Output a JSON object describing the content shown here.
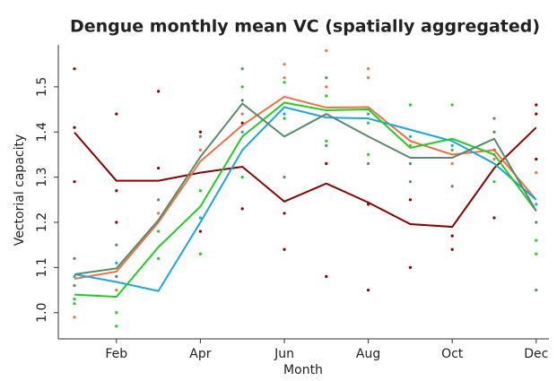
{
  "chart_data": {
    "type": "line",
    "title": "Dengue monthly mean VC (spatially aggregated)",
    "x_label": "Month",
    "y_label": "Vectorial capacity",
    "categories": [
      null,
      "Feb",
      null,
      "Apr",
      null,
      "Jun",
      null,
      "Aug",
      null,
      "Oct",
      null,
      "Dec"
    ],
    "ylim": [
      0.942,
      1.593
    ],
    "yticks": [
      {
        "value": 1.0,
        "label": "1.0"
      },
      1.1,
      1.2,
      1.3,
      1.4,
      1.5
    ],
    "series": [
      {
        "name": "Dark red",
        "color": "#8b0000",
        "values": [
          1.399,
          1.292,
          1.292,
          1.31,
          1.323,
          1.246,
          1.286,
          1.244,
          1.196,
          1.19,
          1.32,
          1.41
        ],
        "points": {
          "x": [
            1,
            1,
            1,
            2,
            2,
            2,
            3,
            3,
            4,
            4,
            5,
            5,
            6,
            6,
            7,
            7,
            8,
            8,
            9,
            9,
            10,
            10,
            11,
            11,
            12,
            12,
            12
          ],
          "y": [
            1.54,
            1.41,
            1.29,
            1.44,
            1.27,
            1.2,
            1.49,
            1.32,
            1.4,
            1.18,
            1.42,
            1.23,
            1.14,
            1.22,
            1.08,
            1.33,
            1.05,
            1.24,
            1.1,
            1.25,
            1.14,
            1.17,
            1.21,
            1.36,
            1.46,
            1.44,
            1.34
          ]
        }
      },
      {
        "name": "Orange",
        "color": "#f07040",
        "values": [
          1.075,
          1.091,
          1.2,
          1.335,
          1.415,
          1.478,
          1.454,
          1.455,
          1.38,
          1.35,
          1.36,
          1.25
        ],
        "points": {
          "x": [
            1,
            1,
            2,
            3,
            4,
            5,
            6,
            6,
            7,
            7,
            8,
            8,
            9,
            10,
            11,
            12
          ],
          "y": [
            0.99,
            1.06,
            1.05,
            1.22,
            1.36,
            1.44,
            1.55,
            1.52,
            1.58,
            1.5,
            1.54,
            1.52,
            1.37,
            1.33,
            1.34,
            1.31
          ]
        }
      },
      {
        "name": "Blue",
        "color": "#1aa7e0",
        "values": [
          1.085,
          1.068,
          1.048,
          1.2,
          1.36,
          1.455,
          1.432,
          1.43,
          1.405,
          1.38,
          1.33,
          1.25
        ],
        "points": {
          "x": [
            1,
            2,
            4,
            5,
            6,
            7,
            8,
            9,
            10,
            11,
            12
          ],
          "y": [
            1.08,
            1.11,
            1.21,
            1.4,
            1.44,
            1.48,
            1.44,
            1.39,
            1.37,
            1.35,
            1.24
          ]
        }
      },
      {
        "name": "Green",
        "color": "#22cc22",
        "values": [
          1.04,
          1.035,
          1.145,
          1.235,
          1.39,
          1.465,
          1.448,
          1.45,
          1.365,
          1.385,
          1.35,
          1.225
        ],
        "points": {
          "x": [
            1,
            1,
            2,
            2,
            3,
            3,
            4,
            4,
            5,
            5,
            6,
            6,
            7,
            7,
            8,
            8,
            9,
            10,
            10,
            11,
            12,
            12
          ],
          "y": [
            1.03,
            1.02,
            0.97,
            1.0,
            1.12,
            1.18,
            1.13,
            1.27,
            1.3,
            1.5,
            1.51,
            1.43,
            1.48,
            1.38,
            1.42,
            1.35,
            1.46,
            1.46,
            1.36,
            1.29,
            1.16,
            1.13
          ]
        }
      },
      {
        "name": "Gray green",
        "color": "#5a8a6a",
        "values": [
          1.085,
          1.098,
          1.205,
          1.345,
          1.463,
          1.39,
          1.44,
          1.39,
          1.343,
          1.343,
          1.385,
          1.225
        ],
        "points": {
          "x": [
            1,
            1,
            2,
            2,
            3,
            4,
            5,
            5,
            6,
            7,
            7,
            8,
            9,
            9,
            10,
            11,
            11,
            12,
            12
          ],
          "y": [
            1.12,
            1.06,
            1.15,
            1.08,
            1.25,
            1.39,
            1.54,
            1.47,
            1.3,
            1.52,
            1.37,
            1.33,
            1.33,
            1.29,
            1.28,
            1.43,
            1.4,
            1.2,
            1.05
          ]
        }
      }
    ]
  }
}
